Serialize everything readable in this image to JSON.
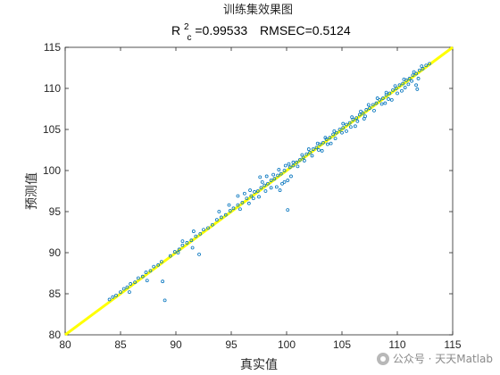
{
  "chart_data": {
    "type": "scatter",
    "title": "训练集效果图",
    "subtitle": {
      "r2_label": "R",
      "r2_sup": "2",
      "r2_sub": "c",
      "r2_value": "=0.99533",
      "rmse": "RMSEC=0.5124"
    },
    "xlabel": "真实值",
    "ylabel": "预测值",
    "xlim": [
      80,
      115
    ],
    "ylim": [
      80,
      115
    ],
    "xticks": [
      80,
      85,
      90,
      95,
      100,
      105,
      110,
      115
    ],
    "yticks": [
      80,
      85,
      90,
      95,
      100,
      105,
      110,
      115
    ],
    "grid": false,
    "colors": {
      "points": "#0072bd",
      "line": "#ffff00"
    },
    "reference_line": {
      "from": [
        80,
        80
      ],
      "to": [
        115,
        115
      ]
    },
    "series": [
      {
        "points": [
          [
            84.0,
            84.3
          ],
          [
            84.3,
            84.6
          ],
          [
            84.6,
            84.8
          ],
          [
            85.0,
            85.2
          ],
          [
            85.3,
            85.6
          ],
          [
            85.6,
            85.8
          ],
          [
            85.9,
            86.2
          ],
          [
            86.3,
            86.4
          ],
          [
            86.6,
            86.9
          ],
          [
            87.0,
            87.1
          ],
          [
            87.3,
            87.6
          ],
          [
            87.7,
            87.8
          ],
          [
            88.0,
            88.3
          ],
          [
            88.4,
            88.5
          ],
          [
            88.7,
            88.9
          ],
          [
            85.8,
            85.2
          ],
          [
            87.4,
            86.6
          ],
          [
            88.8,
            86.5
          ],
          [
            89.0,
            84.2
          ],
          [
            89.5,
            89.6
          ],
          [
            89.9,
            90.1
          ],
          [
            90.3,
            90.4
          ],
          [
            90.6,
            90.9
          ],
          [
            91.0,
            91.2
          ],
          [
            91.4,
            91.5
          ],
          [
            91.8,
            92.0
          ],
          [
            92.2,
            92.3
          ],
          [
            92.5,
            92.8
          ],
          [
            92.9,
            93.0
          ],
          [
            90.6,
            91.4
          ],
          [
            91.6,
            92.6
          ],
          [
            90.2,
            90.0
          ],
          [
            91.5,
            90.6
          ],
          [
            92.1,
            89.8
          ],
          [
            93.3,
            93.4
          ],
          [
            93.7,
            94.0
          ],
          [
            94.1,
            94.3
          ],
          [
            94.5,
            94.6
          ],
          [
            94.9,
            95.1
          ],
          [
            95.2,
            95.4
          ],
          [
            95.6,
            95.8
          ],
          [
            96.0,
            96.1
          ],
          [
            96.4,
            96.6
          ],
          [
            96.8,
            96.9
          ],
          [
            93.9,
            95.0
          ],
          [
            94.8,
            95.8
          ],
          [
            95.6,
            96.9
          ],
          [
            96.2,
            97.2
          ],
          [
            96.7,
            97.6
          ],
          [
            95.8,
            95.3
          ],
          [
            96.6,
            96.0
          ],
          [
            97.0,
            96.6
          ],
          [
            97.5,
            96.8
          ],
          [
            97.1,
            97.4
          ],
          [
            97.4,
            97.5
          ],
          [
            97.7,
            97.9
          ],
          [
            98.0,
            98.2
          ],
          [
            98.3,
            98.4
          ],
          [
            98.6,
            98.8
          ],
          [
            98.9,
            99.0
          ],
          [
            99.2,
            99.4
          ],
          [
            99.5,
            99.6
          ],
          [
            99.8,
            100.0
          ],
          [
            97.6,
            99.2
          ],
          [
            98.2,
            99.3
          ],
          [
            98.8,
            99.5
          ],
          [
            99.3,
            100.1
          ],
          [
            99.9,
            100.6
          ],
          [
            100.2,
            100.8
          ],
          [
            100.6,
            101.0
          ],
          [
            97.8,
            98.6
          ],
          [
            98.1,
            97.5
          ],
          [
            98.6,
            97.9
          ],
          [
            99.1,
            98.0
          ],
          [
            99.6,
            98.4
          ],
          [
            99.4,
            97.6
          ],
          [
            100.1,
            98.8
          ],
          [
            100.4,
            99.3
          ],
          [
            99.8,
            98.6
          ],
          [
            100.1,
            95.2
          ],
          [
            100.3,
            100.4
          ],
          [
            100.6,
            100.6
          ],
          [
            100.9,
            101.0
          ],
          [
            101.2,
            101.3
          ],
          [
            101.5,
            101.6
          ],
          [
            101.8,
            102.0
          ],
          [
            102.1,
            102.2
          ],
          [
            102.4,
            102.6
          ],
          [
            102.7,
            102.8
          ],
          [
            103.0,
            103.2
          ],
          [
            103.3,
            103.4
          ],
          [
            103.6,
            103.8
          ],
          [
            103.9,
            104.0
          ],
          [
            104.2,
            104.4
          ],
          [
            104.5,
            104.6
          ],
          [
            104.8,
            105.0
          ],
          [
            105.1,
            105.2
          ],
          [
            105.4,
            105.6
          ],
          [
            105.7,
            105.8
          ],
          [
            106.0,
            106.2
          ],
          [
            106.3,
            106.4
          ],
          [
            106.6,
            106.8
          ],
          [
            106.9,
            107.0
          ],
          [
            107.2,
            107.4
          ],
          [
            107.5,
            107.6
          ],
          [
            107.8,
            108.0
          ],
          [
            108.1,
            108.2
          ],
          [
            108.4,
            108.6
          ],
          [
            108.7,
            108.8
          ],
          [
            109.0,
            109.2
          ],
          [
            109.3,
            109.4
          ],
          [
            109.6,
            109.8
          ],
          [
            109.9,
            110.0
          ],
          [
            110.2,
            110.4
          ],
          [
            110.5,
            110.6
          ],
          [
            110.8,
            111.0
          ],
          [
            111.1,
            111.2
          ],
          [
            111.4,
            111.6
          ],
          [
            111.7,
            111.8
          ],
          [
            112.0,
            112.2
          ],
          [
            112.3,
            112.4
          ],
          [
            112.6,
            112.8
          ],
          [
            112.9,
            113.0
          ],
          [
            101.0,
            100.5
          ],
          [
            101.6,
            101.2
          ],
          [
            102.3,
            101.8
          ],
          [
            102.9,
            102.5
          ],
          [
            103.7,
            103.2
          ],
          [
            104.4,
            103.9
          ],
          [
            105.0,
            104.6
          ],
          [
            105.8,
            105.3
          ],
          [
            106.4,
            106.0
          ],
          [
            107.1,
            106.6
          ],
          [
            107.9,
            107.3
          ],
          [
            108.6,
            108.1
          ],
          [
            109.2,
            108.7
          ],
          [
            110.0,
            109.4
          ],
          [
            110.7,
            110.1
          ],
          [
            111.3,
            110.9
          ],
          [
            101.4,
            101.9
          ],
          [
            102.0,
            102.6
          ],
          [
            102.8,
            103.3
          ],
          [
            103.5,
            104.0
          ],
          [
            104.3,
            104.8
          ],
          [
            105.1,
            105.7
          ],
          [
            105.9,
            106.5
          ],
          [
            106.7,
            107.2
          ],
          [
            107.4,
            108.0
          ],
          [
            108.2,
            108.8
          ],
          [
            109.0,
            109.5
          ],
          [
            109.8,
            110.3
          ],
          [
            110.6,
            111.1
          ],
          [
            111.5,
            112.0
          ],
          [
            112.2,
            112.7
          ],
          [
            104.0,
            103.3
          ],
          [
            105.4,
            104.8
          ],
          [
            107.0,
            106.3
          ],
          [
            108.9,
            108.2
          ],
          [
            110.4,
            109.7
          ],
          [
            111.0,
            110.5
          ],
          [
            111.9,
            111.2
          ],
          [
            111.7,
            110.4
          ],
          [
            111.8,
            109.9
          ],
          [
            109.5,
            108.6
          ],
          [
            106.2,
            105.4
          ],
          [
            103.2,
            102.4
          ]
        ]
      }
    ]
  },
  "watermark": {
    "text": "公众号 · 天天Matlab",
    "icon": "wechat-icon"
  }
}
